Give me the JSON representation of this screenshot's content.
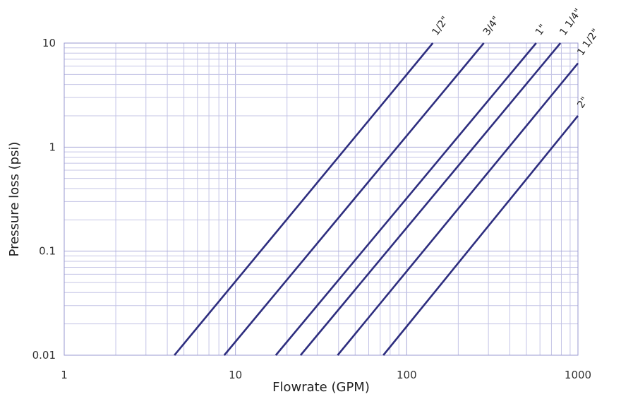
{
  "chart_data": {
    "type": "line",
    "title": "",
    "xlabel": "Flowrate (GPM)",
    "ylabel": "Pressure loss (psi)",
    "xscale": "log",
    "yscale": "log",
    "xlim": [
      1,
      1000
    ],
    "ylim": [
      0.01,
      10
    ],
    "grid": true,
    "line_color": "#2e2e7f",
    "grid_color": "#b8b8e0",
    "x_ticks": [
      {
        "value": 1,
        "label": "1"
      },
      {
        "value": 10,
        "label": "10"
      },
      {
        "value": 100,
        "label": "100"
      },
      {
        "value": 1000,
        "label": "1000"
      }
    ],
    "y_ticks": [
      {
        "value": 0.01,
        "label": "0.01"
      },
      {
        "value": 0.1,
        "label": "0.1"
      },
      {
        "value": 1,
        "label": "1"
      },
      {
        "value": 10,
        "label": "10"
      }
    ],
    "series": [
      {
        "name": "1/2\"",
        "points": [
          [
            4.4,
            0.01
          ],
          [
            142,
            10
          ]
        ]
      },
      {
        "name": "3/4\"",
        "points": [
          [
            8.6,
            0.01
          ],
          [
            282,
            10
          ]
        ]
      },
      {
        "name": "1\"",
        "points": [
          [
            17.2,
            0.01
          ],
          [
            570,
            10
          ]
        ]
      },
      {
        "name": "1 1/4\"",
        "points": [
          [
            24,
            0.01
          ],
          [
            790,
            10
          ]
        ]
      },
      {
        "name": "1 1/2\"",
        "points": [
          [
            39.5,
            0.01
          ],
          [
            1000,
            6.4
          ]
        ]
      },
      {
        "name": "2\"",
        "points": [
          [
            73,
            0.01
          ],
          [
            1000,
            2.0
          ]
        ]
      }
    ]
  }
}
